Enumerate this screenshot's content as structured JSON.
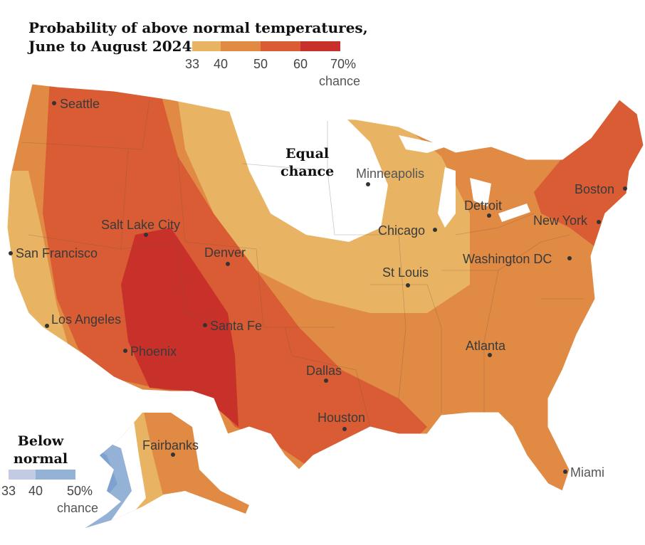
{
  "title_line1": "Probability of above normal temperatures,",
  "title_line2": "June to August 2024",
  "legend_above": {
    "ticks": [
      "33",
      "40",
      "50",
      "60",
      "70%"
    ],
    "unit": "chance",
    "colors": [
      "#e8b464",
      "#e08a44",
      "#d95c34",
      "#c8312a"
    ]
  },
  "legend_below": {
    "title_line1": "Below",
    "title_line2": "normal",
    "ticks": [
      "33",
      "40",
      "50%"
    ],
    "unit": "chance",
    "colors": [
      "#c3cbe4",
      "#94b1d6"
    ]
  },
  "equal_chance": {
    "line1": "Equal",
    "line2": "chance"
  },
  "cities": {
    "seattle": "Seattle",
    "san_francisco": "San Francisco",
    "los_angeles": "Los Angeles",
    "salt_lake_city": "Salt Lake City",
    "phoenix": "Phoenix",
    "denver": "Denver",
    "santa_fe": "Santa Fe",
    "dallas": "Dallas",
    "houston": "Houston",
    "minneapolis": "Minneapolis",
    "chicago": "Chicago",
    "st_louis": "St Louis",
    "detroit": "Detroit",
    "atlanta": "Atlanta",
    "miami": "Miami",
    "washington_dc": "Washington DC",
    "new_york": "New York",
    "boston": "Boston",
    "fairbanks": "Fairbanks"
  }
}
